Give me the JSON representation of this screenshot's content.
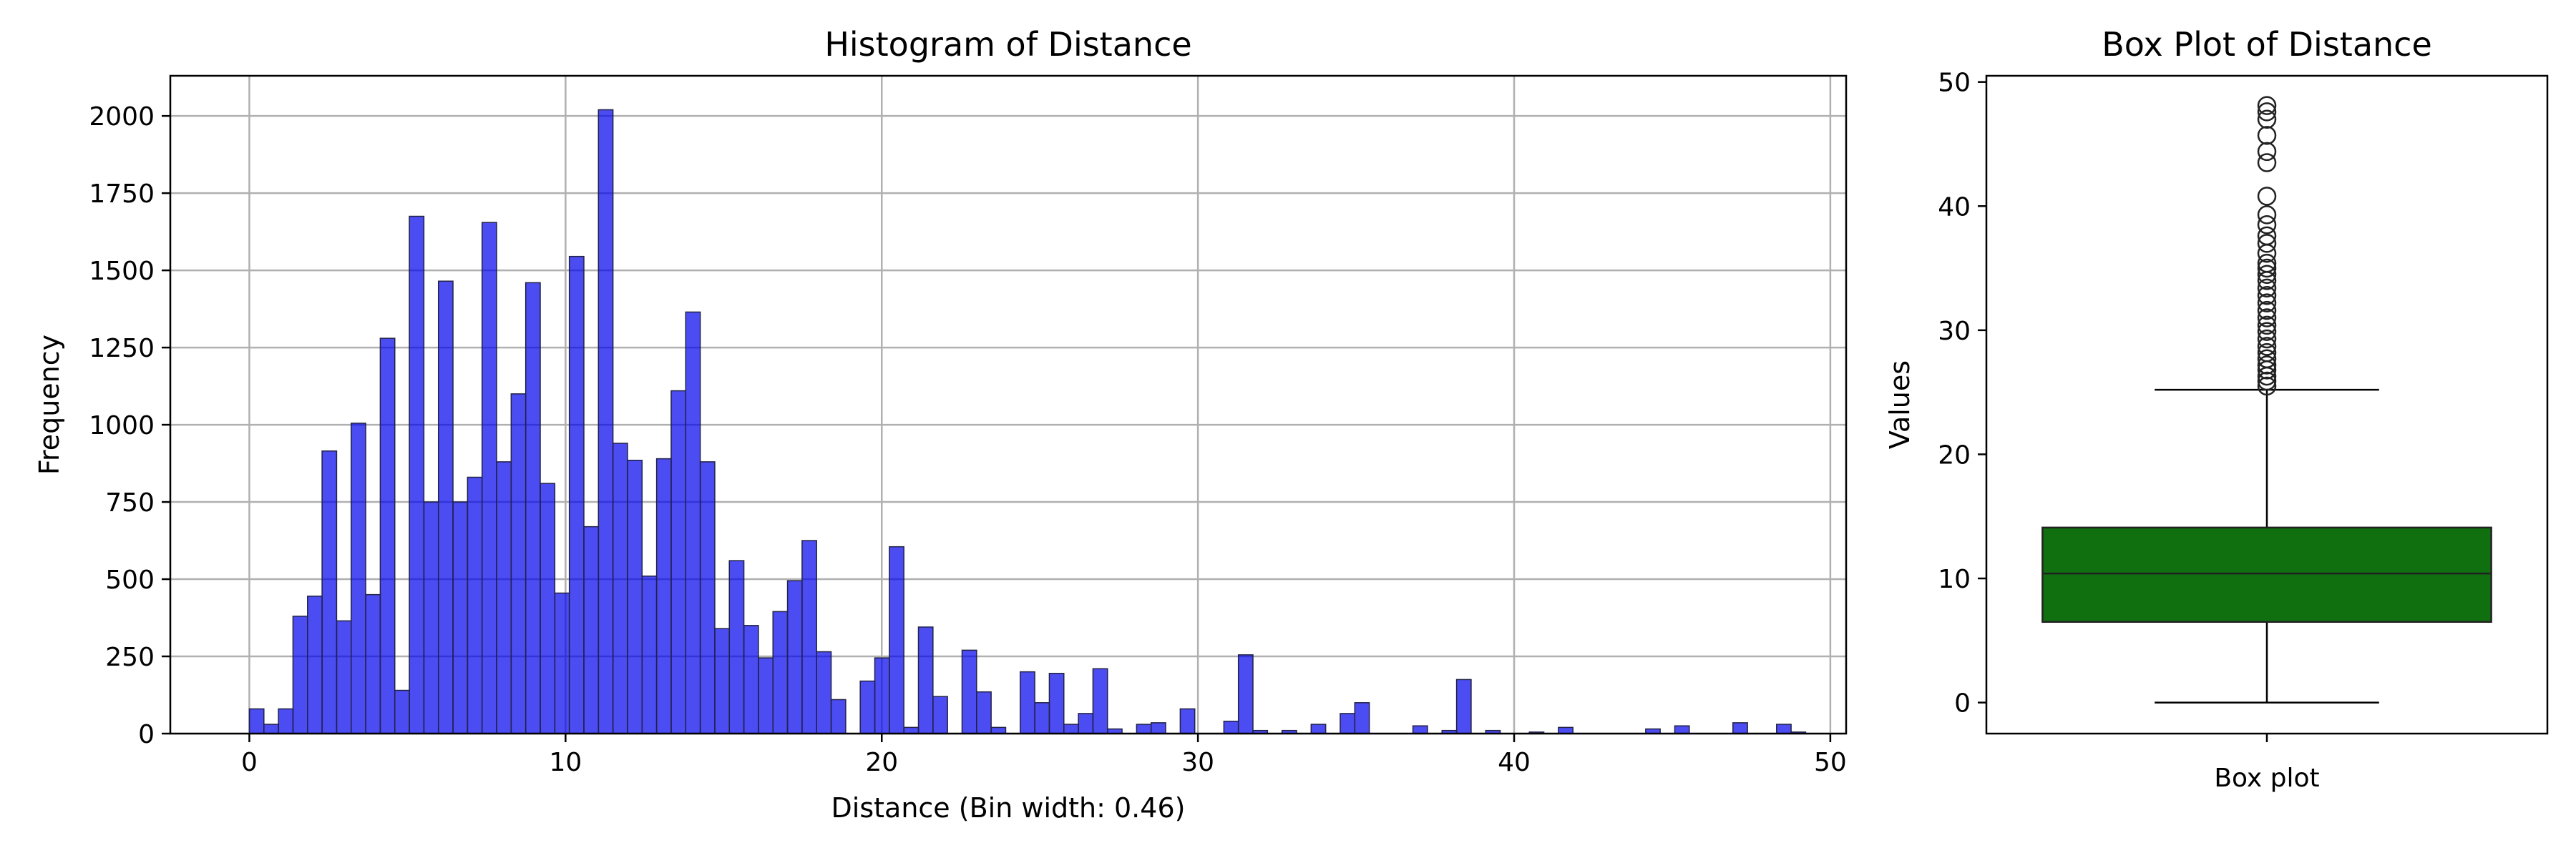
{
  "chart_data": [
    {
      "type": "bar",
      "title": "Histogram of Distance",
      "xlabel": "Distance (Bin width: 0.46)",
      "ylabel": "Frequency",
      "xlim": [
        -2.5,
        50.5
      ],
      "ylim": [
        0,
        2130
      ],
      "xticks": [
        0,
        10,
        20,
        30,
        40,
        50
      ],
      "yticks": [
        0,
        250,
        500,
        750,
        1000,
        1250,
        1500,
        1750,
        2000
      ],
      "grid": true,
      "bin_start": 0,
      "bin_width": 0.46,
      "bar_color": "#0000ee",
      "values": [
        80,
        30,
        80,
        380,
        445,
        915,
        365,
        1005,
        450,
        1280,
        140,
        1675,
        750,
        1465,
        750,
        830,
        1655,
        880,
        1100,
        1460,
        810,
        455,
        1545,
        670,
        2020,
        940,
        885,
        510,
        890,
        1110,
        1365,
        880,
        340,
        560,
        350,
        245,
        395,
        495,
        625,
        265,
        110,
        0,
        170,
        245,
        605,
        20,
        345,
        120,
        0,
        270,
        135,
        20,
        0,
        200,
        100,
        195,
        30,
        65,
        210,
        15,
        0,
        30,
        35,
        0,
        80,
        0,
        0,
        40,
        255,
        10,
        0,
        10,
        0,
        30,
        0,
        65,
        100,
        0,
        0,
        0,
        25,
        0,
        10,
        175,
        0,
        10,
        0,
        0,
        5,
        0,
        20,
        0,
        0,
        0,
        0,
        0,
        15,
        0,
        25,
        0,
        0,
        0,
        35,
        0,
        0,
        30,
        5
      ]
    },
    {
      "type": "box",
      "title": "Box Plot of Distance",
      "xlabel": "Box plot",
      "ylabel": "Values",
      "ylim": [
        -2.5,
        50.5
      ],
      "yticks": [
        0,
        10,
        20,
        30,
        40,
        50
      ],
      "grid": false,
      "box_color": "#107010",
      "whisker_low": 0,
      "q1": 6.5,
      "median": 10.4,
      "q3": 14.1,
      "whisker_high": 25.2,
      "outliers": [
        25.5,
        25.9,
        26.3,
        26.8,
        27.2,
        27.7,
        28.2,
        28.7,
        29.3,
        29.9,
        30.4,
        31.0,
        31.6,
        32.2,
        32.8,
        33.4,
        34.0,
        34.5,
        35.0,
        35.4,
        36.2,
        37.0,
        37.6,
        38.5,
        39.3,
        40.8,
        43.5,
        44.4,
        45.7,
        47.0,
        47.6,
        48.1
      ]
    }
  ]
}
